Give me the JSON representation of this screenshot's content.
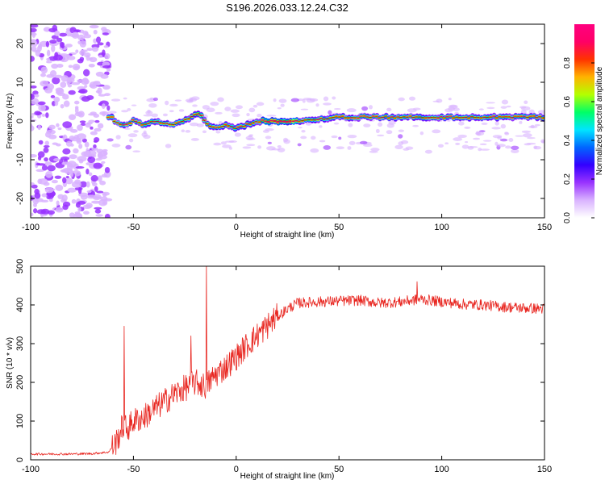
{
  "chart_data": [
    {
      "type": "heatmap",
      "title": "S196.2026.033.12.24.C32",
      "xlabel": "Height of straight line (km)",
      "ylabel": "Frequency (Hz)",
      "xlim": [
        -100,
        150
      ],
      "ylim": [
        -25,
        25
      ],
      "xticks": [
        -100,
        -50,
        0,
        50,
        100,
        150
      ],
      "yticks": [
        -20,
        -10,
        0,
        10,
        20
      ],
      "colorbar": {
        "label": "Normalized spectral amplitude",
        "range": [
          0,
          1
        ],
        "ticks": [
          0.0,
          0.2,
          0.4,
          0.6,
          0.8
        ],
        "colormap": [
          "#ffffff",
          "#d9b3ff",
          "#9933ff",
          "#3300ff",
          "#0066ff",
          "#00e5ff",
          "#00ff66",
          "#b3ff00",
          "#ffb300",
          "#ff3300",
          "#ff0066",
          "#ff0080"
        ]
      },
      "ridge_frequency_hz": [
        {
          "x": -60,
          "y": 0
        },
        {
          "x": -55,
          "y": -1
        },
        {
          "x": -50,
          "y": 0
        },
        {
          "x": -45,
          "y": -1
        },
        {
          "x": -40,
          "y": 0
        },
        {
          "x": -30,
          "y": -1
        },
        {
          "x": -22,
          "y": 1
        },
        {
          "x": -18,
          "y": 2
        },
        {
          "x": -14,
          "y": -1
        },
        {
          "x": -10,
          "y": -2
        },
        {
          "x": -4,
          "y": -1
        },
        {
          "x": 0,
          "y": -2
        },
        {
          "x": 5,
          "y": -1
        },
        {
          "x": 10,
          "y": 0
        },
        {
          "x": 30,
          "y": 0
        },
        {
          "x": 50,
          "y": 1
        },
        {
          "x": 100,
          "y": 1
        },
        {
          "x": 150,
          "y": 1
        }
      ],
      "noise_region_km": [
        -100,
        -62
      ]
    },
    {
      "type": "line",
      "title": "",
      "xlabel": "Height of straight line (km)",
      "ylabel": "SNR (10 * v/v)",
      "xlim": [
        -100,
        150
      ],
      "ylim": [
        0,
        500
      ],
      "xticks": [
        -100,
        -50,
        0,
        50,
        100,
        150
      ],
      "yticks": [
        0,
        100,
        200,
        300,
        400,
        500
      ],
      "color": "#e8251f",
      "series": [
        {
          "name": "SNR",
          "x": [
            -100,
            -90,
            -80,
            -70,
            -62,
            -58,
            -55,
            -53,
            -50,
            -45,
            -40,
            -35,
            -30,
            -25,
            -20,
            -15,
            -10,
            -5,
            0,
            5,
            10,
            15,
            20,
            25,
            30,
            40,
            50,
            60,
            70,
            80,
            90,
            100,
            110,
            120,
            130,
            140,
            150
          ],
          "values": [
            15,
            15,
            15,
            16,
            20,
            50,
            90,
            80,
            100,
            110,
            130,
            150,
            170,
            185,
            200,
            190,
            220,
            240,
            265,
            295,
            320,
            345,
            370,
            390,
            405,
            408,
            410,
            412,
            405,
            408,
            415,
            408,
            402,
            400,
            395,
            392,
            390
          ],
          "spikes": [
            {
              "x": -54.5,
              "y": 345
            },
            {
              "x": -22,
              "y": 320
            },
            {
              "x": -14.5,
              "y": 500
            },
            {
              "x": 88,
              "y": 460
            }
          ]
        }
      ]
    }
  ]
}
